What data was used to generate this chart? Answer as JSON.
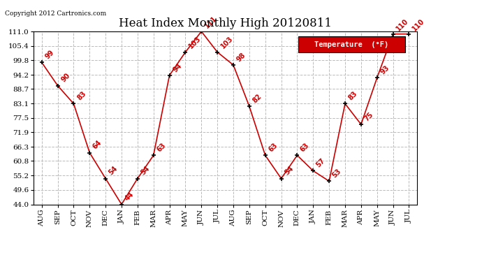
{
  "title": "Heat Index Monthly High 20120811",
  "copyright": "Copyright 2012 Cartronics.com",
  "legend_label": "Temperature  (°F)",
  "x_labels": [
    "AUG",
    "SEP",
    "OCT",
    "NOV",
    "DEC",
    "JAN",
    "FEB",
    "MAR",
    "APR",
    "MAY",
    "JUN",
    "JUL",
    "AUG",
    "SEP",
    "OCT",
    "NOV",
    "DEC",
    "JAN",
    "FEB",
    "MAR",
    "APR",
    "MAY",
    "JUN",
    "JUL"
  ],
  "y_values": [
    99,
    90,
    83,
    64,
    54,
    44,
    54,
    63,
    94,
    103,
    111,
    103,
    98,
    82,
    63,
    54,
    63,
    57,
    53,
    83,
    75,
    93,
    110,
    110
  ],
  "y_min": 44.0,
  "y_max": 111.0,
  "y_ticks": [
    44.0,
    49.6,
    55.2,
    60.8,
    66.3,
    71.9,
    77.5,
    83.1,
    88.7,
    94.2,
    99.8,
    105.4,
    111.0
  ],
  "line_color": "#cc0000",
  "marker_color": "black",
  "label_color": "#cc0000",
  "grid_color": "#bbbbbb",
  "bg_color": "white",
  "title_fontsize": 12,
  "legend_bg": "#cc0000",
  "legend_text_color": "white"
}
